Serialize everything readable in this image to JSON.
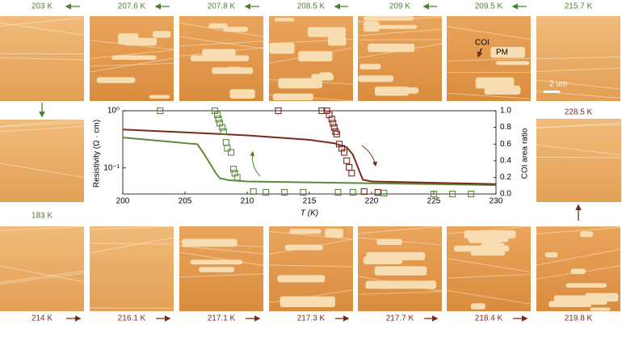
{
  "panels": {
    "top": [
      "203 K",
      "207.6 K",
      "207.8 K",
      "208.5 K",
      "209 K",
      "209.5 K",
      "215.7 K"
    ],
    "left": "183 K",
    "right": "228.5 K",
    "bottom": [
      "214 K",
      "216.1 K",
      "217.1 K",
      "217.3 K",
      "217.7 K",
      "218.4 K",
      "219.8 K"
    ]
  },
  "annotations": {
    "coi": "COI",
    "pm": "PM",
    "scale": "2 um"
  },
  "chart_data": {
    "type": "line",
    "xlabel": "T (K)",
    "ylabel": "Resistivity (Ω · cm)",
    "y2label": "COI area ratio",
    "xlim": [
      200,
      230
    ],
    "xticks": [
      200,
      205,
      210,
      215,
      220,
      225,
      230
    ],
    "ylim": [
      0.035,
      1
    ],
    "ylog": true,
    "yticks": [
      {
        "value": 1,
        "label": "10⁰"
      },
      {
        "value": 0.1,
        "label": "10⁻¹"
      }
    ],
    "y2lim": [
      0,
      1
    ],
    "y2ticks": [
      {
        "value": 0,
        "label": "0.0"
      },
      0.2,
      0.4,
      0.6,
      0.8,
      {
        "value": 1,
        "label": "1.0"
      }
    ],
    "series": [
      {
        "style": "line",
        "color": "#5b8a3c",
        "x": [
          200,
          206,
          206.5,
          207,
          207.5,
          207.8,
          208.5,
          210,
          215,
          220,
          225,
          230
        ],
        "values": [
          0.34,
          0.26,
          0.18,
          0.12,
          0.08,
          0.066,
          0.061,
          0.058,
          0.056,
          0.054,
          0.052,
          0.05
        ]
      },
      {
        "style": "line",
        "color": "#7a2a1c",
        "x": [
          200,
          205,
          210,
          215,
          217,
          218,
          218.5,
          219,
          219.3,
          220,
          225,
          230
        ],
        "values": [
          0.47,
          0.42,
          0.37,
          0.31,
          0.27,
          0.23,
          0.17,
          0.09,
          0.062,
          0.058,
          0.055,
          0.052
        ]
      },
      {
        "style": "square",
        "axis": "y2",
        "color": "#5b8a3c",
        "x": [
          203,
          207.4,
          207.6,
          207.7,
          207.8,
          208,
          208.1,
          208.3,
          208.4,
          208.7,
          208.9,
          209,
          209.2,
          210.5,
          211.5,
          213,
          214.5,
          217.3,
          218.5,
          221,
          225,
          226.5,
          228
        ],
        "values": [
          1,
          1,
          0.95,
          0.9,
          0.85,
          0.8,
          0.75,
          0.62,
          0.55,
          0.5,
          0.3,
          0.25,
          0.2,
          0.03,
          0.02,
          0.02,
          0.02,
          0.02,
          0.02,
          0.01,
          0,
          0,
          0
        ]
      },
      {
        "style": "square",
        "axis": "y2",
        "color": "#7a2a1c",
        "x": [
          212.5,
          216,
          216.4,
          216.6,
          216.8,
          216.9,
          217,
          217.1,
          217.2,
          217.4,
          217.6,
          217.8,
          218,
          218.2,
          218.4,
          219.4,
          220.5
        ],
        "values": [
          1,
          1,
          1,
          0.95,
          0.9,
          0.85,
          0.8,
          0.75,
          0.72,
          0.6,
          0.55,
          0.5,
          0.4,
          0.32,
          0.25,
          0.03,
          0.02
        ]
      }
    ]
  }
}
